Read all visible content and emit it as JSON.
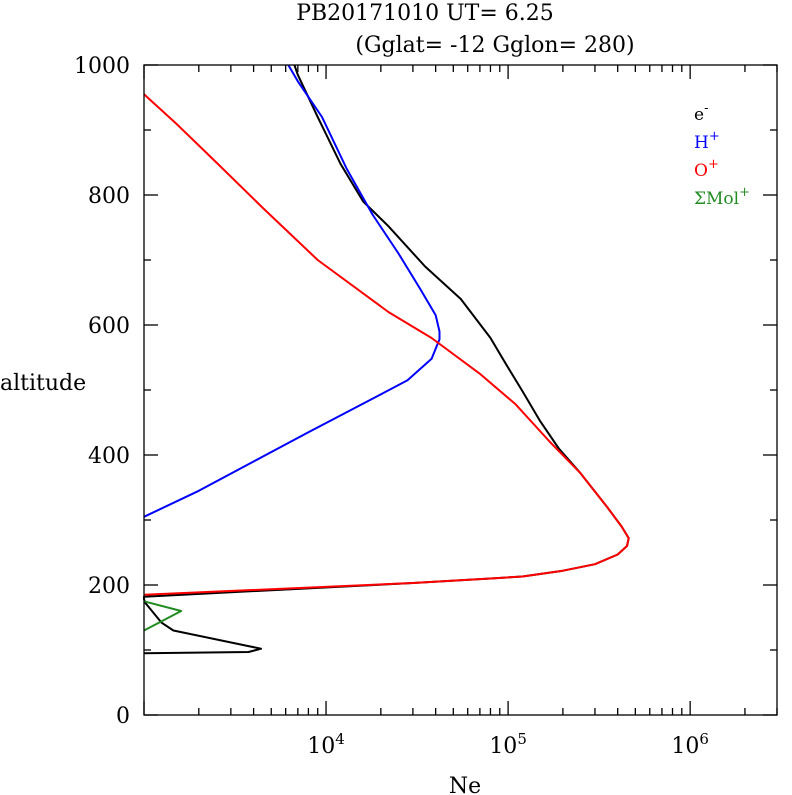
{
  "title": "PB20171010   UT=  6.25",
  "subtitle": "(Gglat= -12   Gglon=  280)",
  "chart_data": {
    "type": "line",
    "xlabel": "Ne",
    "ylabel": "altitude",
    "x_scale": "log",
    "xlim": [
      1000,
      3000000
    ],
    "ylim": [
      0,
      1000
    ],
    "x_ticks": [
      {
        "value": 10000,
        "base": "10",
        "exp": "4"
      },
      {
        "value": 100000,
        "base": "10",
        "exp": "5"
      },
      {
        "value": 1000000,
        "base": "10",
        "exp": "6"
      }
    ],
    "y_ticks": [
      0,
      200,
      400,
      600,
      800,
      1000
    ],
    "y_tick_labels": [
      "0",
      "200",
      "400",
      "600",
      "800",
      "1000"
    ],
    "legend_position": "top-right",
    "series": [
      {
        "name": "e",
        "sup": "-",
        "color": "#000000",
        "points": [
          [
            1000,
            95
          ],
          [
            3750,
            97
          ],
          [
            4400,
            102
          ],
          [
            3750,
            106
          ],
          [
            1450,
            130
          ],
          [
            1250,
            142
          ],
          [
            1020,
            172
          ],
          [
            1000,
            178
          ],
          [
            1000,
            182
          ],
          [
            30000,
            203
          ],
          [
            80000,
            210
          ],
          [
            120000,
            213
          ],
          [
            200000,
            222
          ],
          [
            300000,
            232
          ],
          [
            400000,
            247
          ],
          [
            450000,
            260
          ],
          [
            460000,
            272
          ],
          [
            420000,
            290
          ],
          [
            350000,
            320
          ],
          [
            250000,
            372
          ],
          [
            190000,
            410
          ],
          [
            150000,
            452
          ],
          [
            120000,
            498
          ],
          [
            95000,
            545
          ],
          [
            80000,
            580
          ],
          [
            55000,
            640
          ],
          [
            35000,
            690
          ],
          [
            22000,
            752
          ],
          [
            16000,
            790
          ],
          [
            12000,
            848
          ],
          [
            9000,
            920
          ],
          [
            7000,
            985
          ],
          [
            6700,
            1000
          ]
        ]
      },
      {
        "name": "H",
        "sup": "+",
        "color": "#0000ff",
        "points": [
          [
            1000,
            305
          ],
          [
            2000,
            345
          ],
          [
            4000,
            390
          ],
          [
            8000,
            435
          ],
          [
            15000,
            475
          ],
          [
            28000,
            515
          ],
          [
            38000,
            548
          ],
          [
            42000,
            578
          ],
          [
            42000,
            590
          ],
          [
            40000,
            615
          ],
          [
            33000,
            655
          ],
          [
            25000,
            710
          ],
          [
            18000,
            770
          ],
          [
            13000,
            840
          ],
          [
            9500,
            920
          ],
          [
            7000,
            975
          ],
          [
            6200,
            1000
          ]
        ]
      },
      {
        "name": "O",
        "sup": "+",
        "color": "#ff0000",
        "points": [
          [
            1000,
            185
          ],
          [
            30000,
            203
          ],
          [
            80000,
            210
          ],
          [
            120000,
            213
          ],
          [
            200000,
            222
          ],
          [
            300000,
            232
          ],
          [
            400000,
            247
          ],
          [
            450000,
            260
          ],
          [
            460000,
            272
          ],
          [
            420000,
            290
          ],
          [
            350000,
            320
          ],
          [
            250000,
            372
          ],
          [
            170000,
            420
          ],
          [
            110000,
            478
          ],
          [
            70000,
            525
          ],
          [
            38000,
            580
          ],
          [
            22000,
            620
          ],
          [
            9000,
            700
          ],
          [
            4500,
            780
          ],
          [
            2500,
            850
          ],
          [
            1500,
            910
          ],
          [
            1000,
            955
          ]
        ]
      },
      {
        "name": "ΣMol",
        "sup": "+",
        "color": "#228b22",
        "points": [
          [
            1000,
            130
          ],
          [
            1600,
            160
          ],
          [
            1000,
            175
          ]
        ]
      }
    ]
  }
}
